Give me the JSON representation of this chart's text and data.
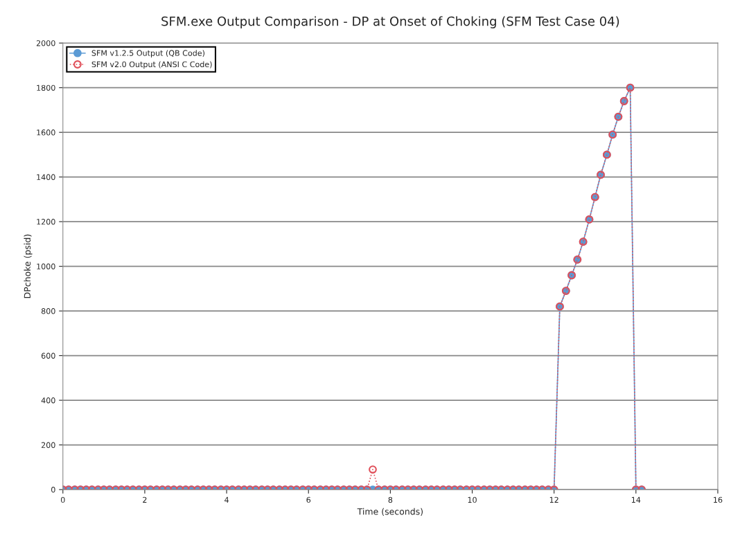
{
  "chart_data": {
    "type": "line",
    "title": "SFM.exe Output Comparison - DP at Onset of Choking (SFM Test Case 04)",
    "xlabel": "Time (seconds)",
    "ylabel": "DPchoke (psid)",
    "x": [
      0,
      0.14,
      0.29,
      0.43,
      0.57,
      0.71,
      0.86,
      1,
      1.14,
      1.29,
      1.43,
      1.57,
      1.71,
      1.86,
      2,
      2.14,
      2.29,
      2.43,
      2.57,
      2.71,
      2.86,
      3,
      3.14,
      3.29,
      3.43,
      3.57,
      3.71,
      3.86,
      4,
      4.14,
      4.29,
      4.43,
      4.57,
      4.71,
      4.86,
      5,
      5.14,
      5.29,
      5.43,
      5.57,
      5.71,
      5.86,
      6,
      6.14,
      6.29,
      6.43,
      6.57,
      6.71,
      6.86,
      7,
      7.14,
      7.29,
      7.43,
      7.57,
      7.71,
      7.86,
      8,
      8.14,
      8.29,
      8.43,
      8.57,
      8.71,
      8.86,
      9,
      9.14,
      9.29,
      9.43,
      9.57,
      9.71,
      9.86,
      10,
      10.14,
      10.29,
      10.43,
      10.57,
      10.71,
      10.86,
      11,
      11.14,
      11.29,
      11.43,
      11.57,
      11.71,
      11.86,
      12,
      12.14,
      12.29,
      12.43,
      12.57,
      12.71,
      12.86,
      13,
      13.14,
      13.29,
      13.43,
      13.57,
      13.71,
      13.86,
      14,
      14.14
    ],
    "series": [
      {
        "name": "SFM v1.2.5 Output (QB Code)",
        "color": "#5b9bd5",
        "line_style": "solid",
        "values": [
          0,
          0,
          0,
          0,
          0,
          0,
          0,
          0,
          0,
          0,
          0,
          0,
          0,
          0,
          0,
          0,
          0,
          0,
          0,
          0,
          0,
          0,
          0,
          0,
          0,
          0,
          0,
          0,
          0,
          0,
          0,
          0,
          0,
          0,
          0,
          0,
          0,
          0,
          0,
          0,
          0,
          0,
          0,
          0,
          0,
          0,
          0,
          0,
          0,
          0,
          0,
          0,
          0,
          0,
          0,
          0,
          0,
          0,
          0,
          0,
          0,
          0,
          0,
          0,
          0,
          0,
          0,
          0,
          0,
          0,
          0,
          0,
          0,
          0,
          0,
          0,
          0,
          0,
          0,
          0,
          0,
          0,
          0,
          0,
          0,
          820,
          890,
          960,
          1030,
          1110,
          1210,
          1310,
          1410,
          1500,
          1590,
          1670,
          1740,
          1800,
          0,
          0
        ]
      },
      {
        "name": "SFM v2.0 Output (ANSI C Code)",
        "color": "#e0505a",
        "line_style": "dotted",
        "values": [
          0,
          0,
          0,
          0,
          0,
          0,
          0,
          0,
          0,
          0,
          0,
          0,
          0,
          0,
          0,
          0,
          0,
          0,
          0,
          0,
          0,
          0,
          0,
          0,
          0,
          0,
          0,
          0,
          0,
          0,
          0,
          0,
          0,
          0,
          0,
          0,
          0,
          0,
          0,
          0,
          0,
          0,
          0,
          0,
          0,
          0,
          0,
          0,
          0,
          0,
          0,
          0,
          0,
          90,
          0,
          0,
          0,
          0,
          0,
          0,
          0,
          0,
          0,
          0,
          0,
          0,
          0,
          0,
          0,
          0,
          0,
          0,
          0,
          0,
          0,
          0,
          0,
          0,
          0,
          0,
          0,
          0,
          0,
          0,
          0,
          820,
          890,
          960,
          1030,
          1110,
          1210,
          1310,
          1410,
          1500,
          1590,
          1670,
          1740,
          1800,
          0,
          0
        ]
      }
    ],
    "xlim": [
      0,
      16
    ],
    "xticks": [
      0,
      2,
      4,
      6,
      8,
      10,
      12,
      14,
      16
    ],
    "ylim": [
      0,
      2000
    ],
    "yticks": [
      0,
      200,
      400,
      600,
      800,
      1000,
      1200,
      1400,
      1600,
      1800,
      2000
    ],
    "grid": "y",
    "legend": "top left",
    "marker": "circle"
  }
}
